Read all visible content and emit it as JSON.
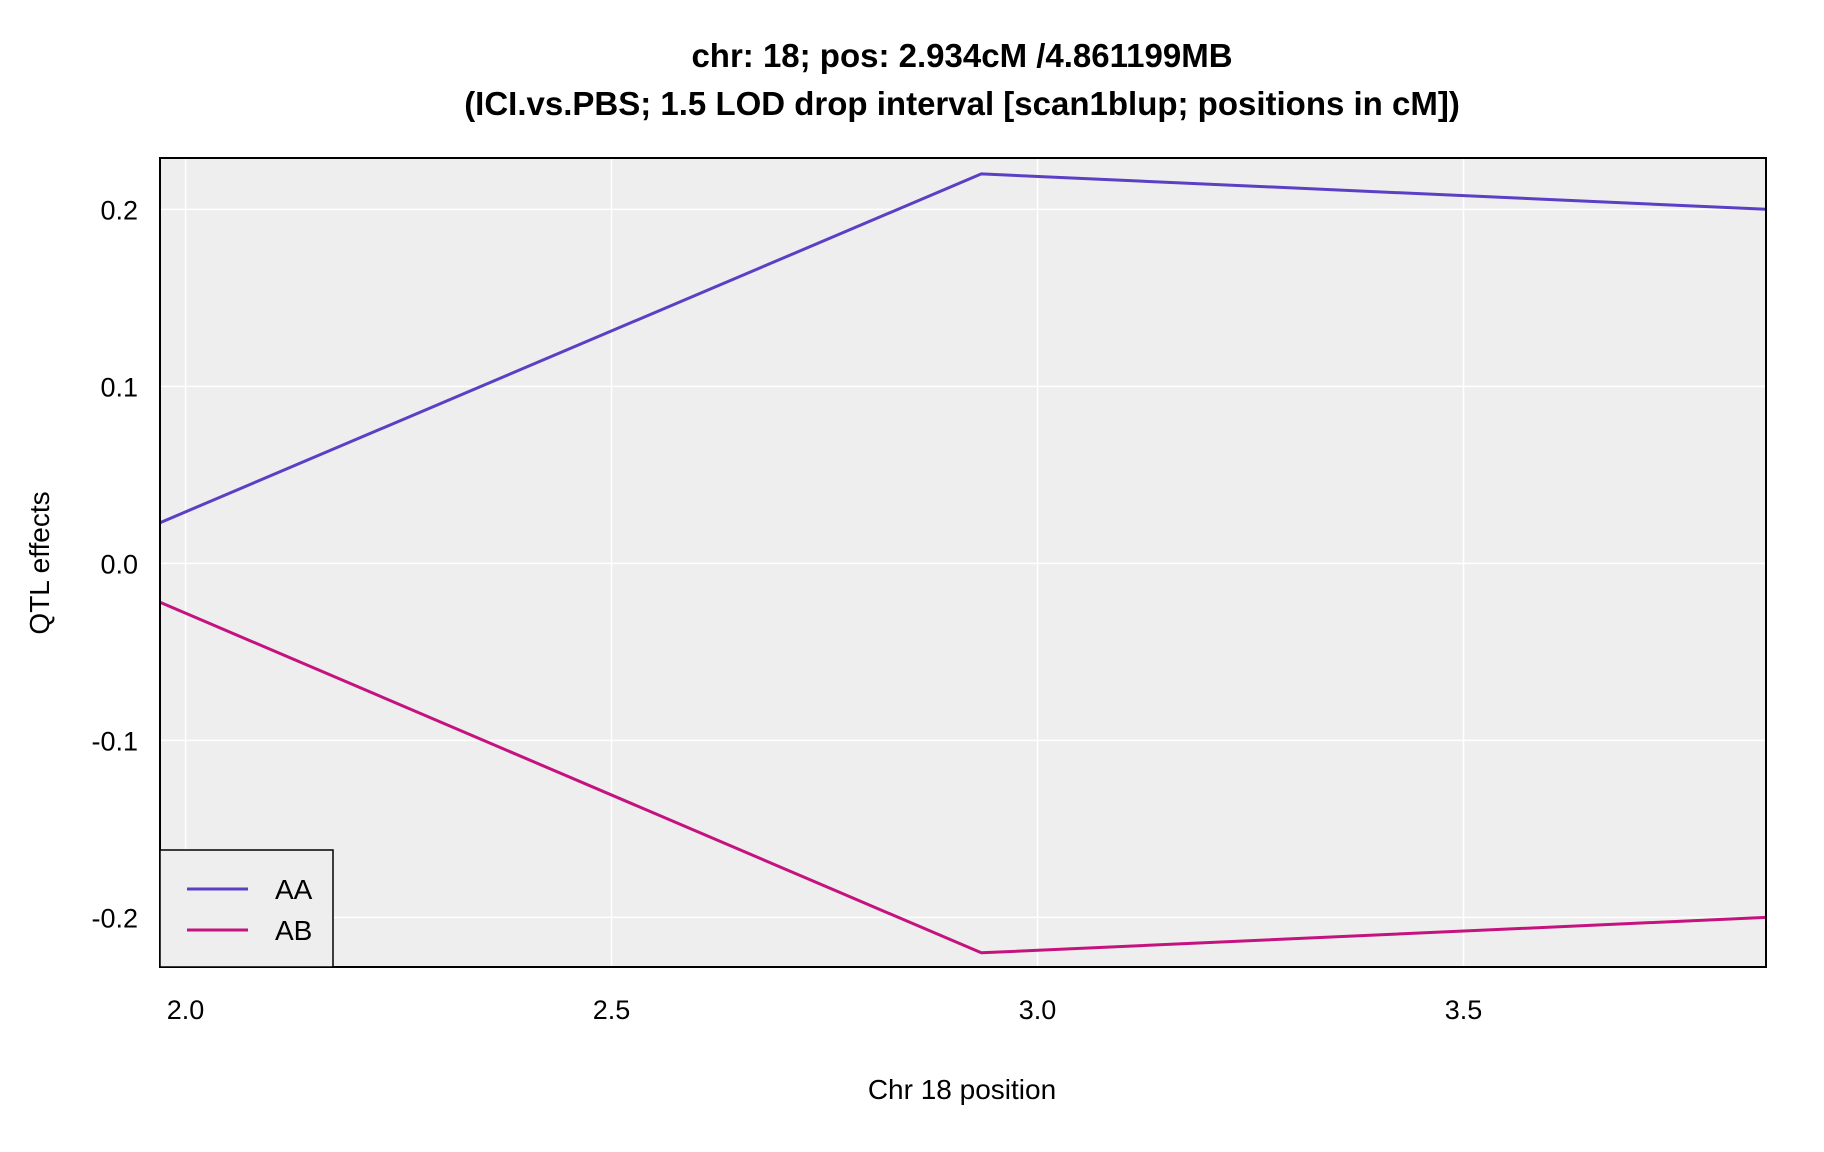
{
  "chart_data": {
    "type": "line",
    "title": "chr: 18; pos: 2.934cM /4.861199MB",
    "subtitle": "(ICI.vs.PBS; 1.5 LOD drop interval [scan1blup; positions in cM])",
    "xlabel": "Chr 18 position",
    "ylabel": "QTL effects",
    "xlim": [
      1.97,
      3.855
    ],
    "ylim": [
      -0.228,
      0.229
    ],
    "x_ticks": [
      2.0,
      2.5,
      3.0,
      3.5
    ],
    "x_tick_labels": [
      "2.0",
      "2.5",
      "3.0",
      "3.5"
    ],
    "y_ticks": [
      0.2,
      0.1,
      0.0,
      -0.1,
      -0.2
    ],
    "y_tick_labels": [
      "0.2",
      "0.1",
      "0.0",
      "-0.1",
      "-0.2"
    ],
    "grid": true,
    "background": "#eeeeee",
    "grid_color": "#ffffff",
    "legend_position": "bottom-left",
    "series": [
      {
        "name": "AA",
        "color": "#5b3fc4",
        "x": [
          1.97,
          2.934,
          3.855
        ],
        "values": [
          0.023,
          0.22,
          0.2
        ]
      },
      {
        "name": "AB",
        "color": "#c4137f",
        "x": [
          1.97,
          2.934,
          3.855
        ],
        "values": [
          -0.022,
          -0.22,
          -0.2
        ]
      }
    ]
  }
}
